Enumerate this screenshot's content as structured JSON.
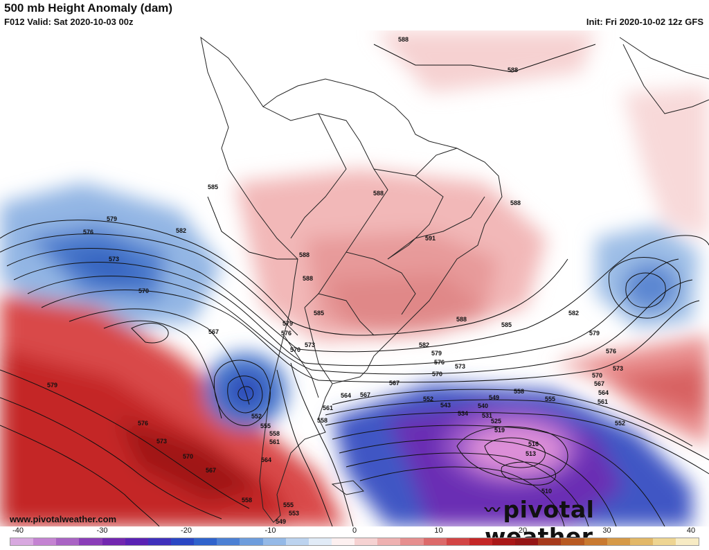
{
  "header": {
    "title": "500 mb Height Anomaly (dam)",
    "valid": "F012 Valid: Sat 2020-10-03 00z",
    "init": "Init: Fri 2020-10-02 12z GFS"
  },
  "watermark": "www.pivotalweather.com",
  "logo": {
    "text": "pivotal weather",
    "icon": "pivotal-weather-logo-icon"
  },
  "colorbar": {
    "tick_labels": [
      "-40",
      "-30",
      "-20",
      "-10",
      "0",
      "10",
      "20",
      "30",
      "40"
    ],
    "colors": [
      "#d8a8e0",
      "#c483d2",
      "#a963c4",
      "#8a3db8",
      "#7227b0",
      "#5a22b4",
      "#3f30bc",
      "#2a47c4",
      "#2f63cc",
      "#4b80d4",
      "#6d9ddd",
      "#94b9e7",
      "#bcd3ef",
      "#e1ebf7",
      "#fdf0f0",
      "#f6d2d2",
      "#eeb1b1",
      "#e68f8f",
      "#dc6a6a",
      "#d24545",
      "#c42727",
      "#a91818",
      "#941616",
      "#a63a1c",
      "#b85a22",
      "#c97a30",
      "#d69a48",
      "#e2b868",
      "#eed592",
      "#f7ebc4"
    ]
  },
  "map": {
    "region": "South America and surrounding oceans",
    "contour_labels": [
      {
        "text": "588",
        "id": "n1"
      },
      {
        "text": "588",
        "id": "n2"
      },
      {
        "text": "585",
        "id": "n3"
      },
      {
        "text": "588",
        "id": "n4"
      },
      {
        "text": "588",
        "id": "n5"
      },
      {
        "text": "591",
        "id": "n6"
      },
      {
        "text": "588",
        "id": "n7"
      },
      {
        "text": "579",
        "id": "w1"
      },
      {
        "text": "582",
        "id": "w2"
      },
      {
        "text": "576",
        "id": "w3"
      },
      {
        "text": "573",
        "id": "w4"
      },
      {
        "text": "570",
        "id": "w5"
      },
      {
        "text": "567",
        "id": "w6"
      },
      {
        "text": "585",
        "id": "c1"
      },
      {
        "text": "588",
        "id": "c2"
      },
      {
        "text": "579",
        "id": "c3"
      },
      {
        "text": "576",
        "id": "c4"
      },
      {
        "text": "570",
        "id": "c5"
      },
      {
        "text": "573",
        "id": "c6"
      },
      {
        "text": "588",
        "id": "e1"
      },
      {
        "text": "585",
        "id": "e2"
      },
      {
        "text": "582",
        "id": "e3"
      },
      {
        "text": "579",
        "id": "e4"
      },
      {
        "text": "576",
        "id": "e5"
      },
      {
        "text": "573",
        "id": "e6"
      },
      {
        "text": "570",
        "id": "e7"
      },
      {
        "text": "567",
        "id": "e8"
      },
      {
        "text": "582",
        "id": "f1"
      },
      {
        "text": "579",
        "id": "f2"
      },
      {
        "text": "576",
        "id": "f3"
      },
      {
        "text": "573",
        "id": "f4"
      },
      {
        "text": "570",
        "id": "f5"
      },
      {
        "text": "567",
        "id": "f6"
      },
      {
        "text": "564",
        "id": "f7"
      },
      {
        "text": "561",
        "id": "f8"
      },
      {
        "text": "552",
        "id": "f9"
      },
      {
        "text": "567",
        "id": "s1"
      },
      {
        "text": "564",
        "id": "s2"
      },
      {
        "text": "561",
        "id": "s3"
      },
      {
        "text": "558",
        "id": "s4"
      },
      {
        "text": "558",
        "id": "s5"
      },
      {
        "text": "555",
        "id": "s6"
      },
      {
        "text": "552",
        "id": "s7"
      },
      {
        "text": "549",
        "id": "s8"
      },
      {
        "text": "543",
        "id": "s9"
      },
      {
        "text": "540",
        "id": "s10"
      },
      {
        "text": "534",
        "id": "s11"
      },
      {
        "text": "531",
        "id": "s12"
      },
      {
        "text": "525",
        "id": "s13"
      },
      {
        "text": "519",
        "id": "s14"
      },
      {
        "text": "516",
        "id": "s15"
      },
      {
        "text": "513",
        "id": "s16"
      },
      {
        "text": "510",
        "id": "s17"
      },
      {
        "text": "552",
        "id": "p1"
      },
      {
        "text": "555",
        "id": "p2"
      },
      {
        "text": "558",
        "id": "p3"
      },
      {
        "text": "561",
        "id": "p4"
      },
      {
        "text": "564",
        "id": "p5"
      },
      {
        "text": "579",
        "id": "r1"
      },
      {
        "text": "576",
        "id": "r2"
      },
      {
        "text": "573",
        "id": "r3"
      },
      {
        "text": "570",
        "id": "r4"
      },
      {
        "text": "567",
        "id": "r5"
      },
      {
        "text": "558",
        "id": "r6"
      },
      {
        "text": "555",
        "id": "r7"
      },
      {
        "text": "553",
        "id": "r8"
      },
      {
        "text": "549",
        "id": "r9"
      }
    ]
  }
}
